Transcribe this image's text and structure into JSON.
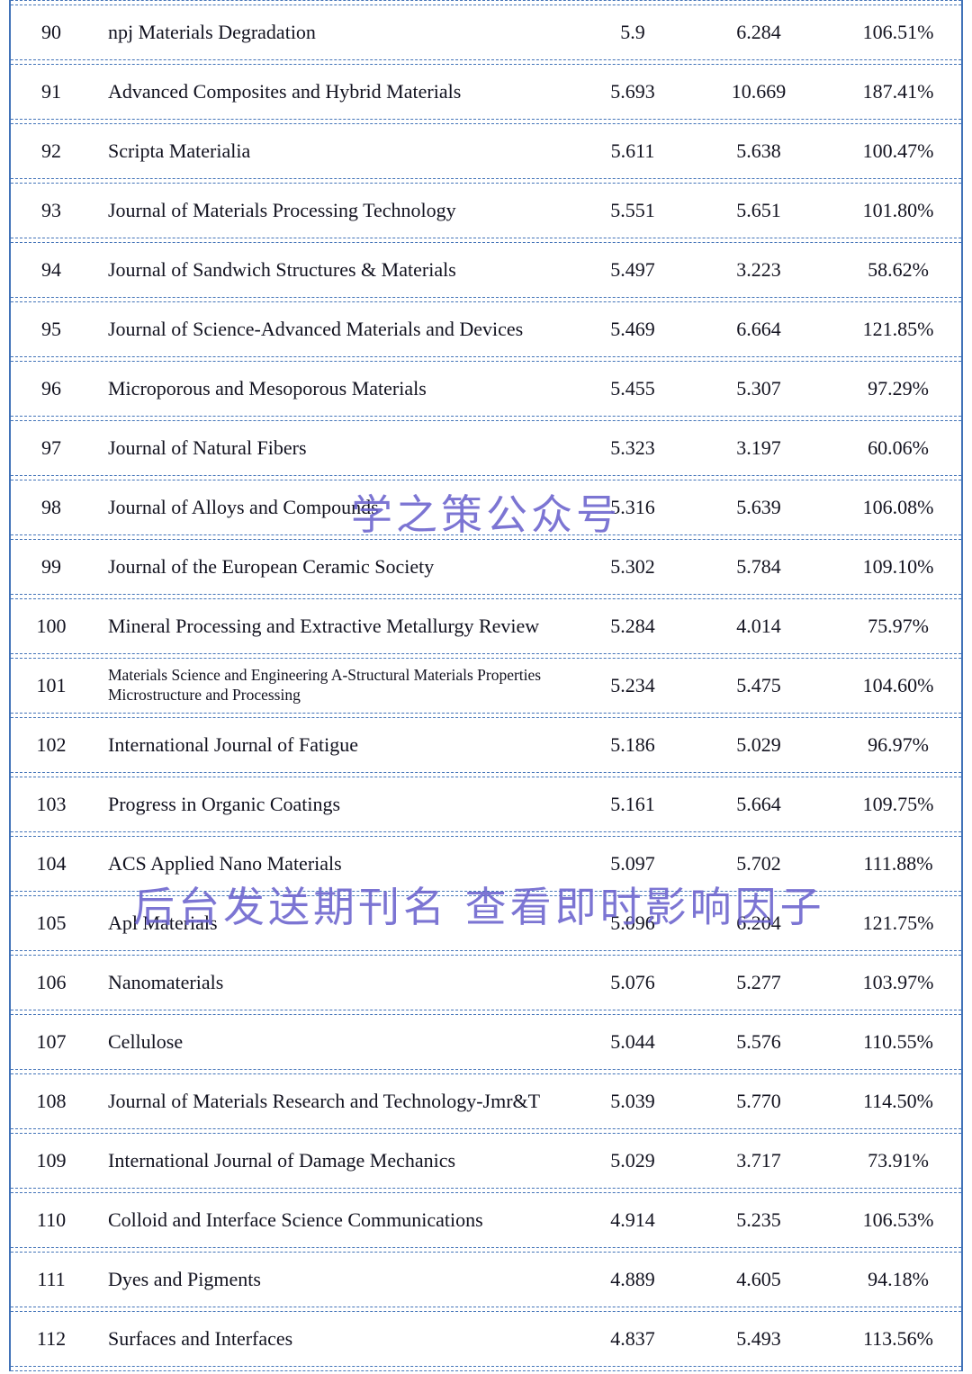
{
  "table": {
    "rows": [
      {
        "rank": "90",
        "journal": "npj Materials Degradation",
        "impact_factor": "5.9",
        "realtime_if": "6.284",
        "ratio": "106.51%"
      },
      {
        "rank": "91",
        "journal": "Advanced Composites and Hybrid Materials",
        "impact_factor": "5.693",
        "realtime_if": "10.669",
        "ratio": "187.41%"
      },
      {
        "rank": "92",
        "journal": "Scripta Materialia",
        "impact_factor": "5.611",
        "realtime_if": "5.638",
        "ratio": "100.47%"
      },
      {
        "rank": "93",
        "journal": "Journal of Materials Processing Technology",
        "impact_factor": "5.551",
        "realtime_if": "5.651",
        "ratio": "101.80%"
      },
      {
        "rank": "94",
        "journal": "Journal of Sandwich Structures & Materials",
        "impact_factor": "5.497",
        "realtime_if": "3.223",
        "ratio": "58.62%"
      },
      {
        "rank": "95",
        "journal": "Journal of Science-Advanced Materials and Devices",
        "impact_factor": "5.469",
        "realtime_if": "6.664",
        "ratio": "121.85%"
      },
      {
        "rank": "96",
        "journal": "Microporous and Mesoporous Materials",
        "impact_factor": "5.455",
        "realtime_if": "5.307",
        "ratio": "97.29%"
      },
      {
        "rank": "97",
        "journal": "Journal of Natural Fibers",
        "impact_factor": "5.323",
        "realtime_if": "3.197",
        "ratio": "60.06%"
      },
      {
        "rank": "98",
        "journal": "Journal of Alloys and Compounds",
        "impact_factor": "5.316",
        "realtime_if": "5.639",
        "ratio": "106.08%"
      },
      {
        "rank": "99",
        "journal": "Journal of the European Ceramic Society",
        "impact_factor": "5.302",
        "realtime_if": "5.784",
        "ratio": "109.10%"
      },
      {
        "rank": "100",
        "journal": "Mineral Processing and Extractive Metallurgy Review",
        "impact_factor": "5.284",
        "realtime_if": "4.014",
        "ratio": "75.97%"
      },
      {
        "rank": "101",
        "journal": "Materials Science and Engineering A-Structural Materials Properties Microstructure and Processing",
        "impact_factor": "5.234",
        "realtime_if": "5.475",
        "ratio": "104.60%"
      },
      {
        "rank": "102",
        "journal": "International Journal of Fatigue",
        "impact_factor": "5.186",
        "realtime_if": "5.029",
        "ratio": "96.97%"
      },
      {
        "rank": "103",
        "journal": "Progress in Organic Coatings",
        "impact_factor": "5.161",
        "realtime_if": "5.664",
        "ratio": "109.75%"
      },
      {
        "rank": "104",
        "journal": "ACS Applied Nano Materials",
        "impact_factor": "5.097",
        "realtime_if": "5.702",
        "ratio": "111.88%"
      },
      {
        "rank": "105",
        "journal": "Apl Materials",
        "impact_factor": "5.096",
        "realtime_if": "6.204",
        "ratio": "121.75%"
      },
      {
        "rank": "106",
        "journal": "Nanomaterials",
        "impact_factor": "5.076",
        "realtime_if": "5.277",
        "ratio": "103.97%"
      },
      {
        "rank": "107",
        "journal": "Cellulose",
        "impact_factor": "5.044",
        "realtime_if": "5.576",
        "ratio": "110.55%"
      },
      {
        "rank": "108",
        "journal": "Journal of Materials Research and Technology-Jmr&T",
        "impact_factor": "5.039",
        "realtime_if": "5.770",
        "ratio": "114.50%"
      },
      {
        "rank": "109",
        "journal": "International Journal of Damage Mechanics",
        "impact_factor": "5.029",
        "realtime_if": "3.717",
        "ratio": "73.91%"
      },
      {
        "rank": "110",
        "journal": "Colloid and Interface Science Communications",
        "impact_factor": "4.914",
        "realtime_if": "5.235",
        "ratio": "106.53%"
      },
      {
        "rank": "111",
        "journal": "Dyes and Pigments",
        "impact_factor": "4.889",
        "realtime_if": "4.605",
        "ratio": "94.18%"
      },
      {
        "rank": "112",
        "journal": "Surfaces and Interfaces",
        "impact_factor": "4.837",
        "realtime_if": "5.493",
        "ratio": "113.56%"
      }
    ]
  },
  "watermarks": [
    {
      "text": "学之策公众号"
    },
    {
      "text": "后台发送期刊名 查看即时影响因子"
    }
  ],
  "colors": {
    "border_blue": "#4273b8",
    "text": "#12121f",
    "watermark_purple": "#6b63ce",
    "background": "#ffffff"
  }
}
